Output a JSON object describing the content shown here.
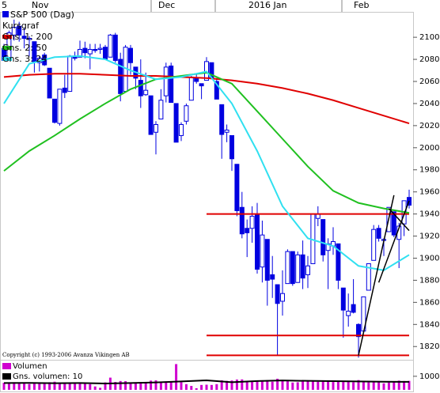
{
  "chart_data": [
    {
      "type": "candlestick",
      "title": "S&P 500 (Dag)",
      "subtitle": "Kursgraf",
      "x_labels": [
        "5",
        "Nov",
        "Dec",
        "2016 Jan",
        "Feb"
      ],
      "color": "#0000e0",
      "open": [
        2090,
        2080,
        2102,
        2110,
        2101,
        2098,
        2096,
        2077,
        2084,
        2072,
        2044,
        2022,
        2054,
        2051,
        2083,
        2082,
        2090,
        2085,
        2089,
        2089,
        2091,
        2082,
        2102,
        2080,
        2051,
        2090,
        2073,
        2061,
        2048,
        2047,
        2014,
        2026,
        2047,
        2074,
        2040,
        2011,
        2024,
        2043,
        2063,
        2058,
        2061,
        2077,
        2060,
        2039,
        2014,
        2011,
        1985,
        1946,
        1927,
        1927,
        1940,
        1892,
        1917,
        1885,
        1876,
        1861,
        1877,
        1906,
        1878,
        1903,
        1885,
        1895,
        1936,
        1935,
        1907,
        1911,
        1913,
        1873,
        1848,
        1858,
        1840,
        1834,
        1871,
        1898,
        1927,
        1916,
        1924,
        1942,
        1917,
        1931,
        1955
      ],
      "high": [
        2094,
        2106,
        2116,
        2114,
        2108,
        2101,
        2096,
        2083,
        2086,
        2072,
        2044,
        2053,
        2066,
        2084,
        2087,
        2097,
        2096,
        2094,
        2094,
        2094,
        2093,
        2103,
        2104,
        2086,
        2093,
        2093,
        2073,
        2080,
        2068,
        2047,
        2024,
        2053,
        2077,
        2077,
        2040,
        2023,
        2040,
        2065,
        2067,
        2058,
        2082,
        2077,
        2063,
        2039,
        2021,
        2011,
        1985,
        1960,
        1935,
        1947,
        1950,
        1934,
        1917,
        1902,
        1876,
        1889,
        1908,
        1906,
        1906,
        1916,
        1902,
        1940,
        1947,
        1935,
        1918,
        1928,
        1913,
        1873,
        1868,
        1881,
        1841,
        1865,
        1895,
        1930,
        1930,
        1918,
        1946,
        1942,
        1932,
        1952,
        1962
      ],
      "low": [
        2079,
        2080,
        2097,
        2096,
        2090,
        2083,
        2068,
        2069,
        2074,
        2045,
        2022,
        2020,
        2045,
        2051,
        2079,
        2082,
        2081,
        2071,
        2086,
        2085,
        2080,
        2082,
        2077,
        2042,
        2051,
        2066,
        2053,
        2036,
        2047,
        2012,
        1994,
        2026,
        2041,
        2041,
        2005,
        2006,
        2021,
        2043,
        2058,
        2044,
        2061,
        2062,
        2044,
        1990,
        2005,
        1979,
        1938,
        1918,
        1901,
        1914,
        1886,
        1878,
        1857,
        1864,
        1812,
        1848,
        1877,
        1875,
        1878,
        1872,
        1873,
        1895,
        1929,
        1897,
        1872,
        1903,
        1872,
        1828,
        1838,
        1850,
        1810,
        1834,
        1871,
        1898,
        1915,
        1902,
        1924,
        1919,
        1891,
        1920,
        1945
      ],
      "close": [
        2079,
        2104,
        2109,
        2102,
        2099,
        2099,
        2078,
        2081,
        2075,
        2045,
        2023,
        2053,
        2050,
        2083,
        2081,
        2089,
        2086,
        2089,
        2088,
        2090,
        2080,
        2102,
        2079,
        2049,
        2091,
        2077,
        2063,
        2047,
        2052,
        2012,
        2021,
        2043,
        2073,
        2041,
        2005,
        2021,
        2038,
        2064,
        2060,
        2056,
        2078,
        2063,
        2044,
        2012,
        2016,
        1990,
        1943,
        1922,
        1923,
        1938,
        1890,
        1921,
        1880,
        1881,
        1859,
        1868,
        1906,
        1877,
        1903,
        1882,
        1893,
        1940,
        1940,
        1903,
        1913,
        1915,
        1880,
        1853,
        1852,
        1851,
        1829,
        1865,
        1895,
        1926,
        1918,
        1917,
        1946,
        1921,
        1929,
        1952,
        1948
      ],
      "series": [
        {
          "name": "Gns. 1: 200",
          "color": "#e00000",
          "x": [
            0,
            5,
            10,
            15,
            20,
            25,
            30,
            35,
            40,
            45,
            50,
            55,
            60,
            65,
            70,
            75,
            80
          ],
          "values": [
            2064,
            2066,
            2067,
            2067,
            2066,
            2065,
            2065,
            2064,
            2063,
            2061,
            2058,
            2054,
            2049,
            2043,
            2036,
            2029,
            2022
          ]
        },
        {
          "name": "Gns. 2: 50",
          "color": "#20c020",
          "x": [
            0,
            5,
            10,
            15,
            20,
            25,
            30,
            35,
            40,
            45,
            50,
            55,
            60,
            65,
            70,
            75,
            80
          ],
          "values": [
            1979,
            1997,
            2011,
            2026,
            2040,
            2053,
            2062,
            2065,
            2068,
            2058,
            2033,
            2008,
            1983,
            1961,
            1950,
            1945,
            1941
          ]
        },
        {
          "name": "Gns. 3: 24",
          "color": "#30e0f0",
          "x": [
            0,
            5,
            10,
            15,
            20,
            25,
            30,
            35,
            40,
            45,
            50,
            55,
            60,
            65,
            70,
            75,
            80
          ],
          "values": [
            2040,
            2076,
            2082,
            2083,
            2080,
            2070,
            2062,
            2064,
            2069,
            2040,
            1997,
            1947,
            1918,
            1911,
            1893,
            1889,
            1903
          ]
        }
      ],
      "levels": [
        {
          "x": [
            40,
            80
          ],
          "value": 1940
        },
        {
          "x": [
            40,
            80
          ],
          "value": 1830
        },
        {
          "x": [
            40,
            80
          ],
          "value": 1812
        }
      ],
      "trendlines": [
        {
          "x": [
            70,
            77
          ],
          "values": [
            1812,
            1957
          ]
        },
        {
          "x": [
            74,
            80
          ],
          "values": [
            1878,
            1952
          ]
        },
        {
          "x": [
            76,
            80
          ],
          "values": [
            1945,
            1925
          ]
        }
      ],
      "ylim": [
        1808,
        2123
      ],
      "yticks": [
        1820,
        1840,
        1860,
        1880,
        1900,
        1920,
        1940,
        1960,
        1980,
        2000,
        2020,
        2040,
        2060,
        2080,
        2100
      ],
      "copyright": "Copyright (c) 1993-2006 Avanza Vikingen AB"
    },
    {
      "type": "bar",
      "series": [
        {
          "name": "Volumen",
          "color": "#d000d0",
          "values": [
            520,
            480,
            560,
            500,
            470,
            430,
            520,
            470,
            450,
            560,
            600,
            520,
            480,
            530,
            460,
            500,
            440,
            420,
            250,
            150,
            550,
            900,
            580,
            650,
            640,
            530,
            520,
            560,
            510,
            680,
            700,
            600,
            620,
            640,
            1900,
            560,
            420,
            290,
            120,
            360,
            380,
            360,
            420,
            700,
            660,
            690,
            760,
            770,
            620,
            590,
            620,
            650,
            710,
            600,
            820,
            700,
            690,
            540,
            560,
            640,
            660,
            700,
            590,
            640,
            650,
            580,
            620,
            580,
            640,
            560,
            720,
            610,
            550,
            600,
            560,
            480,
            540,
            580,
            680,
            650,
            660
          ]
        },
        {
          "name": "Gns. volumen: 10",
          "color": "#000000",
          "type": "line",
          "x": [
            0,
            5,
            10,
            15,
            20,
            25,
            30,
            35,
            40,
            45,
            50,
            55,
            60,
            65,
            70,
            75,
            80
          ],
          "values": [
            500,
            510,
            490,
            500,
            470,
            500,
            550,
            620,
            700,
            560,
            650,
            690,
            660,
            640,
            620,
            600,
            590
          ]
        }
      ],
      "ylim": [
        0,
        2100
      ],
      "yticks": [
        {
          "value": 1000,
          "label": "1000'"
        }
      ]
    }
  ]
}
